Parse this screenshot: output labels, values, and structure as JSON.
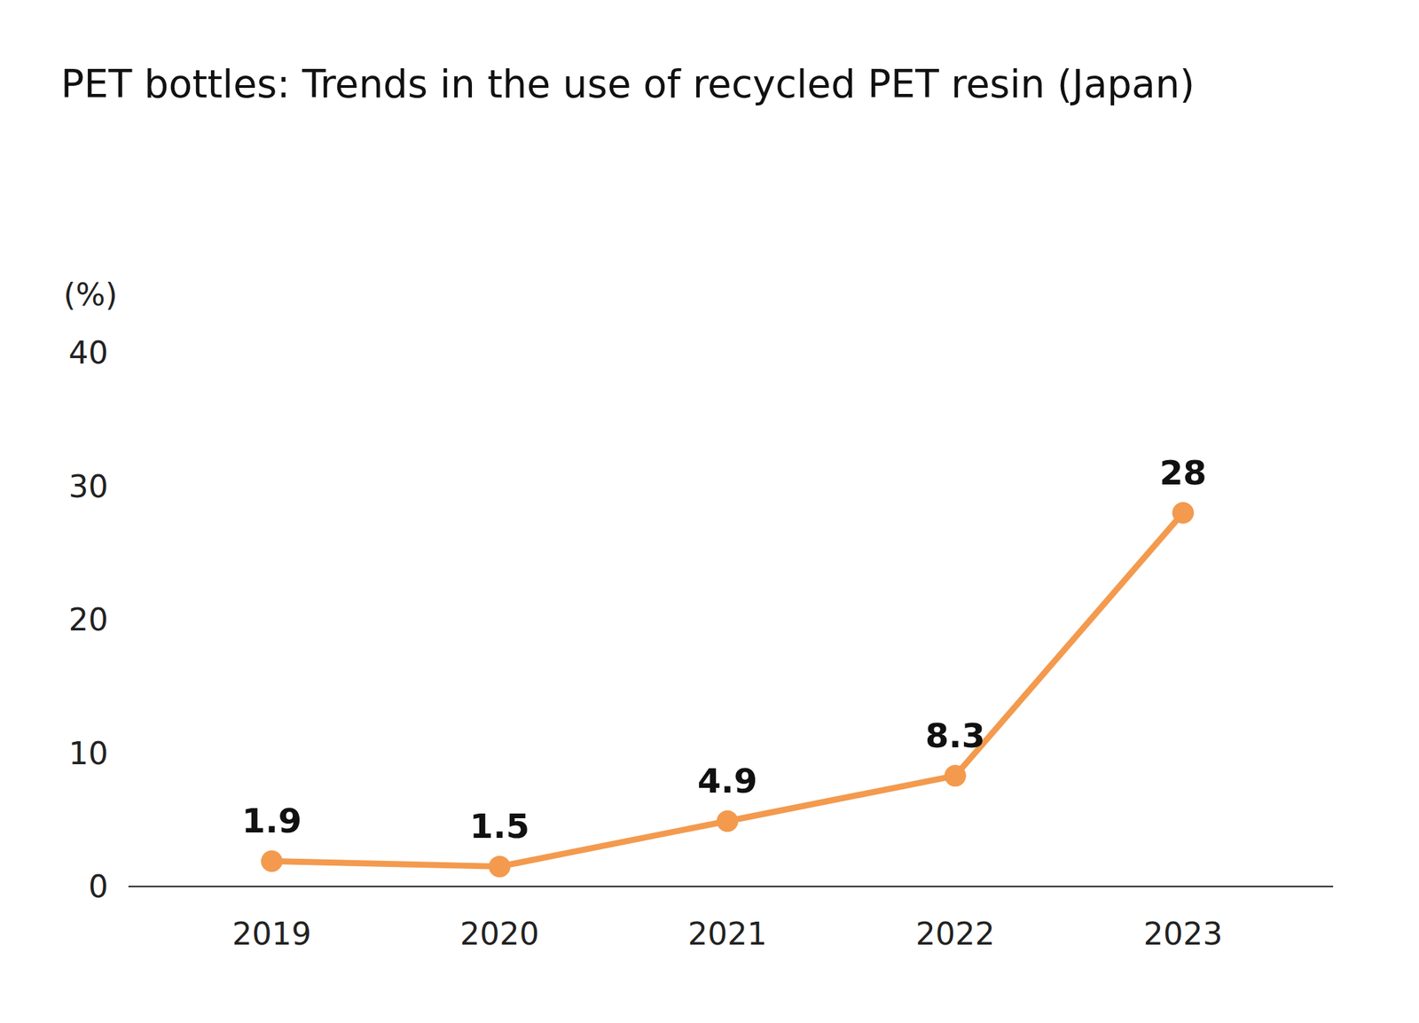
{
  "chart_data": {
    "type": "line",
    "title": "PET bottles: Trends in the use of recycled PET resin (Japan)",
    "y_label": "(%)",
    "categories": [
      "2019",
      "2020",
      "2021",
      "2022",
      "2023"
    ],
    "values": [
      1.9,
      1.5,
      4.9,
      8.3,
      28
    ],
    "color": "#f39a4e",
    "marker": "circle",
    "ylim": [
      0,
      40
    ],
    "yticks": [
      0,
      10,
      20,
      30,
      40
    ],
    "grid": false,
    "data_labels": true
  }
}
